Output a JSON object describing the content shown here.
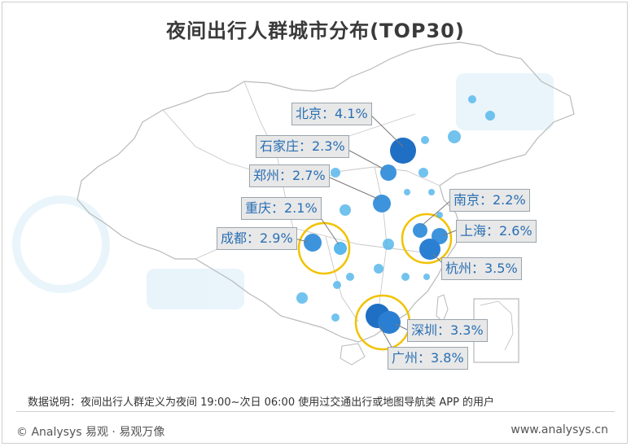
{
  "title": "夜间出行人群城市分布(TOP30)",
  "cities": [
    {
      "key": "beijing",
      "label": "北京：4.1%"
    },
    {
      "key": "shijiazhuang",
      "label": "石家庄：2.3%"
    },
    {
      "key": "zhengzhou",
      "label": "郑州：2.7%"
    },
    {
      "key": "chongqing",
      "label": "重庆：2.1%"
    },
    {
      "key": "chengdu",
      "label": "成都：2.9%"
    },
    {
      "key": "nanjing",
      "label": "南京：2.2%"
    },
    {
      "key": "shanghai",
      "label": "上海：2.6%"
    },
    {
      "key": "hangzhou",
      "label": "杭州：3.5%"
    },
    {
      "key": "shenzhen",
      "label": "深圳：3.3%"
    },
    {
      "key": "guangzhou",
      "label": "广州：3.8%"
    }
  ],
  "note": "数据说明：夜间出行人群定义为夜间 19:00~次日 06:00 使用过交通出行或地图导航类 APP 的用户",
  "footer": {
    "copyright": "© Analysys 易观 · 易观万像",
    "website": "www.analysys.cn"
  },
  "colors": {
    "dot_dark": "#1f6fc4",
    "dot_light": "#5ab8ec",
    "highlight_ring": "#f2c200",
    "label_text": "#2a6fb3",
    "map_outline": "#b9b9b9"
  }
}
